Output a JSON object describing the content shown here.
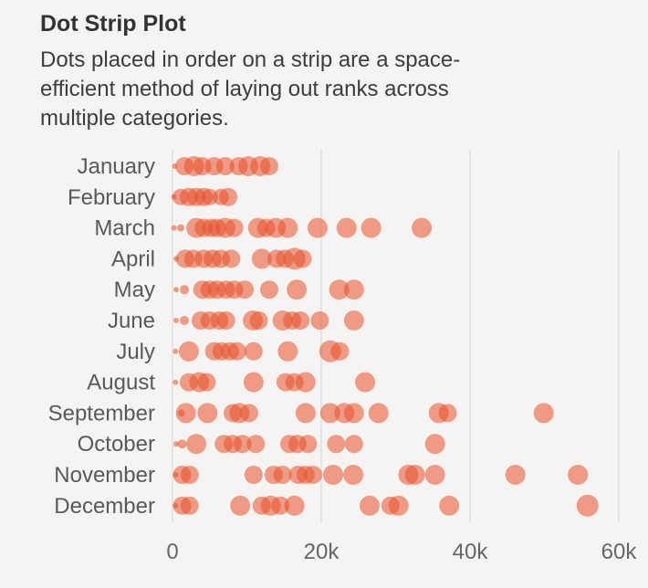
{
  "header": {
    "title": "Dot Strip Plot",
    "subtitle": "Dots placed in order on a strip are a space-efficient method of laying out ranks across multiple categories.",
    "subtitle_lines": [
      "Dots placed in order on a strip are a space-",
      "efficient method of laying out ranks across",
      "multiple categories."
    ]
  },
  "chart_data": {
    "type": "scatter",
    "variant": "dot-strip-plot",
    "title": "Dot Strip Plot",
    "xlabel": "",
    "ylabel": "",
    "xlim": [
      0,
      62000
    ],
    "grid": "vertical",
    "x_ticks": [
      {
        "value_k": 0,
        "label": "0"
      },
      {
        "value_k": 20,
        "label": "20k"
      },
      {
        "value_k": 40,
        "label": "40k"
      },
      {
        "value_k": 60,
        "label": "60k"
      }
    ],
    "categories": [
      "January",
      "February",
      "March",
      "April",
      "May",
      "June",
      "July",
      "August",
      "September",
      "October",
      "November",
      "December"
    ],
    "series": [
      {
        "name": "January",
        "dots_k": [
          [
            0.3,
            3
          ],
          [
            1.6,
            10
          ],
          [
            2.9,
            11
          ],
          [
            4.0,
            10
          ],
          [
            5.6,
            10
          ],
          [
            7.1,
            10
          ],
          [
            8.9,
            10
          ],
          [
            10.2,
            11
          ],
          [
            11.8,
            11
          ],
          [
            13.0,
            10
          ]
        ]
      },
      {
        "name": "February",
        "dots_k": [
          [
            0.2,
            3
          ],
          [
            1.1,
            9
          ],
          [
            2.2,
            10
          ],
          [
            3.2,
            10
          ],
          [
            4.2,
            10
          ],
          [
            5.0,
            9
          ],
          [
            6.5,
            9
          ],
          [
            7.5,
            10
          ]
        ]
      },
      {
        "name": "March",
        "dots_k": [
          [
            0.2,
            3
          ],
          [
            1.1,
            4
          ],
          [
            3.2,
            11
          ],
          [
            4.2,
            10
          ],
          [
            5.2,
            10
          ],
          [
            6.0,
            10
          ],
          [
            7.1,
            11
          ],
          [
            8.3,
            10
          ],
          [
            11.5,
            11
          ],
          [
            12.6,
            10
          ],
          [
            13.9,
            11
          ],
          [
            15.5,
            11
          ],
          [
            19.5,
            11
          ],
          [
            23.4,
            11
          ],
          [
            26.7,
            11
          ],
          [
            33.5,
            11
          ]
        ]
      },
      {
        "name": "April",
        "dots_k": [
          [
            0.5,
            3
          ],
          [
            1.7,
            10
          ],
          [
            2.8,
            10
          ],
          [
            4.2,
            10
          ],
          [
            5.4,
            10
          ],
          [
            6.5,
            10
          ],
          [
            7.9,
            10
          ],
          [
            12.0,
            11
          ],
          [
            14.0,
            10
          ],
          [
            15.1,
            10
          ],
          [
            16.4,
            12
          ],
          [
            17.5,
            10
          ]
        ]
      },
      {
        "name": "May",
        "dots_k": [
          [
            0.5,
            3
          ],
          [
            1.6,
            5
          ],
          [
            4.0,
            10
          ],
          [
            5.0,
            10
          ],
          [
            6.0,
            10
          ],
          [
            7.2,
            10
          ],
          [
            8.3,
            10
          ],
          [
            9.7,
            10
          ],
          [
            13.0,
            10
          ],
          [
            16.7,
            11
          ],
          [
            22.4,
            11
          ],
          [
            24.4,
            11
          ]
        ]
      },
      {
        "name": "June",
        "dots_k": [
          [
            0.5,
            3
          ],
          [
            1.6,
            5
          ],
          [
            3.8,
            10
          ],
          [
            5.0,
            10
          ],
          [
            6.3,
            10
          ],
          [
            7.2,
            10
          ],
          [
            10.8,
            11
          ],
          [
            11.6,
            10
          ],
          [
            14.8,
            11
          ],
          [
            16.1,
            10
          ],
          [
            17.2,
            10
          ],
          [
            19.8,
            10
          ],
          [
            24.4,
            11
          ]
        ]
      },
      {
        "name": "July",
        "dots_k": [
          [
            0.4,
            3
          ],
          [
            2.2,
            11
          ],
          [
            5.6,
            10
          ],
          [
            6.6,
            10
          ],
          [
            7.7,
            10
          ],
          [
            8.7,
            10
          ],
          [
            10.9,
            10
          ],
          [
            15.5,
            11
          ],
          [
            21.2,
            12
          ],
          [
            22.5,
            10
          ]
        ]
      },
      {
        "name": "August",
        "dots_k": [
          [
            0.4,
            3
          ],
          [
            2.2,
            10
          ],
          [
            3.6,
            11
          ],
          [
            4.6,
            10
          ],
          [
            10.9,
            11
          ],
          [
            15.2,
            10
          ],
          [
            16.4,
            10
          ],
          [
            17.9,
            11
          ],
          [
            25.9,
            11
          ]
        ]
      },
      {
        "name": "September",
        "dots_k": [
          [
            1.2,
            4
          ],
          [
            1.8,
            11
          ],
          [
            4.7,
            11
          ],
          [
            8.1,
            10
          ],
          [
            9.0,
            11
          ],
          [
            10.3,
            10
          ],
          [
            17.9,
            11
          ],
          [
            21.2,
            11
          ],
          [
            23.1,
            11
          ],
          [
            24.4,
            11
          ],
          [
            27.7,
            11
          ],
          [
            35.8,
            11
          ],
          [
            37.0,
            10
          ],
          [
            49.9,
            11
          ]
        ]
      },
      {
        "name": "October",
        "dots_k": [
          [
            0.5,
            3
          ],
          [
            1.3,
            5
          ],
          [
            3.2,
            11
          ],
          [
            6.9,
            10
          ],
          [
            8.1,
            10
          ],
          [
            9.4,
            10
          ],
          [
            11.2,
            10
          ],
          [
            15.7,
            10
          ],
          [
            16.8,
            10
          ],
          [
            18.2,
            10
          ],
          [
            22.0,
            10
          ],
          [
            24.4,
            10
          ],
          [
            35.3,
            11
          ]
        ]
      },
      {
        "name": "November",
        "dots_k": [
          [
            0.4,
            3
          ],
          [
            1.3,
            10
          ],
          [
            2.3,
            10
          ],
          [
            10.9,
            10
          ],
          [
            13.6,
            10
          ],
          [
            14.8,
            10
          ],
          [
            16.9,
            10
          ],
          [
            17.9,
            10
          ],
          [
            18.9,
            10
          ],
          [
            21.6,
            11
          ],
          [
            24.3,
            11
          ],
          [
            31.7,
            11
          ],
          [
            32.6,
            11
          ],
          [
            35.3,
            11
          ],
          [
            46.1,
            11
          ],
          [
            54.5,
            11
          ]
        ]
      },
      {
        "name": "December",
        "dots_k": [
          [
            0.4,
            3
          ],
          [
            1.3,
            10
          ],
          [
            2.3,
            10
          ],
          [
            9.1,
            11
          ],
          [
            12.0,
            10
          ],
          [
            13.2,
            11
          ],
          [
            14.5,
            10
          ],
          [
            16.4,
            11
          ],
          [
            26.5,
            11
          ],
          [
            29.3,
            10
          ],
          [
            30.4,
            11
          ],
          [
            37.2,
            11
          ],
          [
            55.8,
            12
          ]
        ]
      }
    ],
    "colors": {
      "background": "#f5f4f2",
      "dot": "#e8502a",
      "dot_opacity": 0.55,
      "gridline": "#e0dfdd",
      "month_label": "#595959",
      "tick_label": "#666666",
      "title": "#333333",
      "subtitle": "#3d3d3d"
    },
    "legend": "none"
  }
}
